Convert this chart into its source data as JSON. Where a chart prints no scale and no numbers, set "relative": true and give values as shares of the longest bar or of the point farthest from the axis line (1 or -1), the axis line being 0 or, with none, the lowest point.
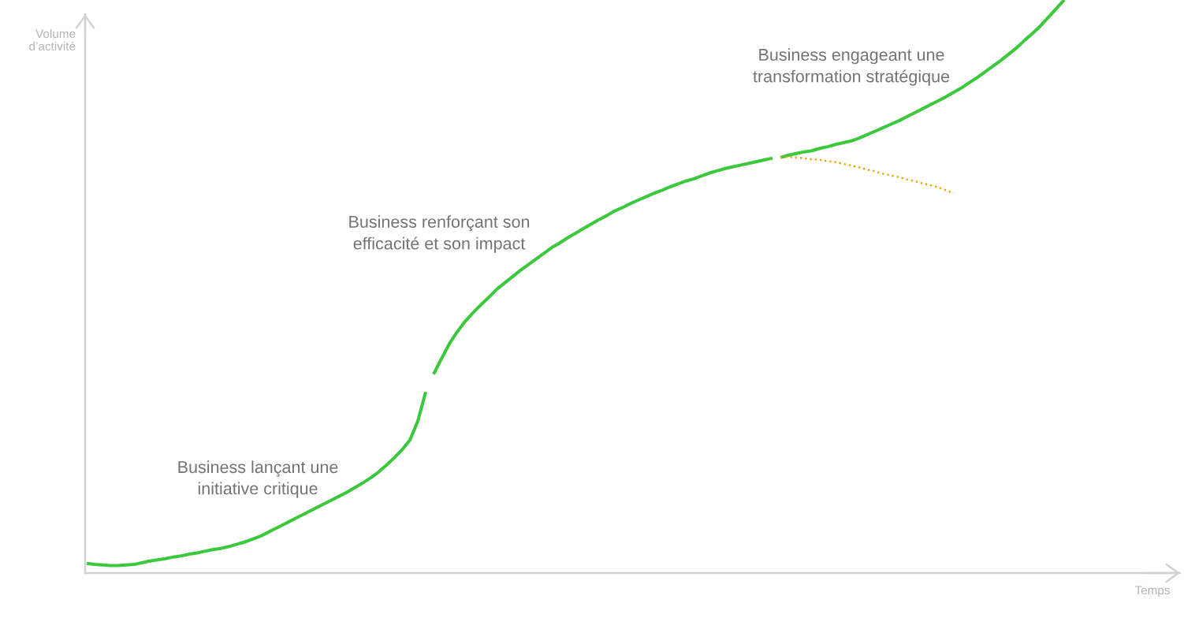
{
  "chart_data": {
    "type": "line",
    "relative": true,
    "line_style": "solid",
    "ylabel": "Volume\nd’activité",
    "xlabel": "Temps",
    "annotations": [
      "Business lançant une\ninitiative critique",
      "Business renforçant son\nefficacité et son impact",
      "Business engageant une\ntransformation stratégique"
    ],
    "categories": [
      null,
      null,
      null,
      null,
      null,
      null,
      null,
      null,
      null,
      null,
      null,
      null,
      null,
      null,
      null,
      null,
      null,
      null,
      null,
      null,
      null,
      null,
      null,
      null,
      null,
      null,
      null,
      null,
      null,
      null,
      null,
      null,
      null,
      null,
      null,
      null,
      null,
      null,
      null,
      null,
      null,
      null,
      null,
      null,
      null,
      null,
      null,
      null,
      null,
      null,
      null,
      null,
      null,
      null,
      null,
      null,
      null,
      null,
      null,
      null,
      null,
      null,
      null,
      null,
      null,
      null,
      null,
      null,
      null,
      null,
      null,
      null,
      null,
      null,
      null,
      null,
      null,
      null,
      null,
      null,
      null,
      null,
      null,
      null,
      null,
      null,
      null,
      null,
      null,
      null,
      null,
      null,
      null,
      null,
      null,
      null,
      null,
      null,
      null,
      null,
      null,
      null,
      null,
      null,
      null,
      null,
      null,
      null,
      null,
      null,
      null,
      null,
      null,
      null,
      null,
      null,
      null,
      null,
      null,
      null,
      null,
      null,
      null,
      null,
      null,
      null,
      null,
      null,
      null,
      null,
      null,
      null,
      null,
      null,
      null,
      null,
      null,
      null,
      null
    ],
    "series": [
      {
        "color": "#3cc83c",
        "values": [
          0.017,
          0.015,
          0.014,
          0.013,
          0.013,
          0.014,
          0.015,
          0.018,
          0.021,
          0.023,
          0.025,
          0.028,
          0.03,
          0.033,
          0.035,
          0.038,
          0.041,
          0.043,
          0.046,
          0.05,
          0.054,
          0.059,
          0.064,
          0.071,
          0.078,
          0.085,
          0.092,
          0.099,
          0.106,
          0.113,
          0.12,
          0.127,
          0.134,
          0.141,
          0.149,
          0.157,
          0.166,
          0.176,
          0.188,
          0.201,
          0.215,
          0.232,
          0.265,
          0.316,
          null,
          null,
          null,
          null,
          null,
          null,
          null,
          null,
          null,
          null,
          null,
          null,
          null,
          null,
          null,
          null,
          null,
          null,
          null,
          null,
          null,
          null,
          null,
          null,
          null,
          null,
          null,
          null,
          null,
          null,
          null,
          null,
          null,
          null,
          null,
          null,
          null,
          null,
          null,
          null,
          null,
          null,
          null,
          null,
          null,
          null,
          null,
          null,
          null,
          null,
          null,
          null,
          null,
          null,
          null,
          null,
          null,
          null,
          null,
          null,
          null,
          null,
          null,
          null,
          null,
          null,
          null,
          null,
          null,
          null,
          null,
          null,
          null,
          null,
          null,
          null,
          null,
          null,
          null,
          null,
          null,
          null,
          null,
          null,
          null,
          null,
          null,
          null,
          null,
          null,
          null,
          null,
          null,
          null,
          null
        ]
      },
      {
        "color": "#3cc83c",
        "values": [
          null,
          null,
          null,
          null,
          null,
          null,
          null,
          null,
          null,
          null,
          null,
          null,
          null,
          null,
          null,
          null,
          null,
          null,
          null,
          null,
          null,
          null,
          null,
          null,
          null,
          null,
          null,
          null,
          null,
          null,
          null,
          null,
          null,
          null,
          null,
          null,
          null,
          null,
          null,
          null,
          null,
          null,
          null,
          null,
          0.347,
          0.374,
          0.4,
          0.421,
          0.439,
          0.454,
          0.468,
          0.481,
          0.495,
          0.506,
          0.517,
          0.528,
          0.538,
          0.548,
          0.558,
          0.568,
          0.576,
          0.585,
          0.593,
          0.601,
          0.609,
          0.617,
          0.624,
          0.632,
          0.638,
          0.645,
          0.651,
          0.657,
          0.663,
          0.668,
          0.674,
          0.679,
          0.684,
          0.688,
          0.693,
          0.698,
          0.702,
          0.706,
          0.709,
          0.712,
          0.715,
          0.718,
          0.721,
          0.724,
          null,
          null,
          null,
          null,
          null,
          null,
          null,
          null,
          null,
          null,
          null,
          null,
          null,
          null,
          null,
          null,
          null,
          null,
          null,
          null,
          null,
          null,
          null,
          null,
          null,
          null,
          null,
          null,
          null,
          null,
          null,
          null,
          null,
          null,
          null,
          null,
          null,
          null,
          null,
          null,
          null,
          null,
          null,
          null,
          null,
          null,
          null,
          null,
          null,
          null,
          null
        ]
      },
      {
        "color": "#3cc83c",
        "values": [
          null,
          null,
          null,
          null,
          null,
          null,
          null,
          null,
          null,
          null,
          null,
          null,
          null,
          null,
          null,
          null,
          null,
          null,
          null,
          null,
          null,
          null,
          null,
          null,
          null,
          null,
          null,
          null,
          null,
          null,
          null,
          null,
          null,
          null,
          null,
          null,
          null,
          null,
          null,
          null,
          null,
          null,
          null,
          null,
          null,
          null,
          null,
          null,
          null,
          null,
          null,
          null,
          null,
          null,
          null,
          null,
          null,
          null,
          null,
          null,
          null,
          null,
          null,
          null,
          null,
          null,
          null,
          null,
          null,
          null,
          null,
          null,
          null,
          null,
          null,
          null,
          null,
          null,
          null,
          null,
          null,
          null,
          null,
          null,
          null,
          null,
          null,
          null,
          0.725,
          0.729,
          0.732,
          0.735,
          0.737,
          0.741,
          0.744,
          0.748,
          0.751,
          0.754,
          0.759,
          0.765,
          0.771,
          0.777,
          0.783,
          0.789,
          0.796,
          0.803,
          0.81,
          0.817,
          0.824,
          0.831,
          0.839,
          0.847,
          0.856,
          0.865,
          0.875,
          0.885,
          0.895,
          0.906,
          0.917,
          0.93,
          0.942,
          0.955,
          0.97,
          0.985,
          1.0,
          null,
          null,
          null,
          null,
          null,
          null,
          null,
          null,
          null,
          null,
          null,
          null,
          null,
          null
        ]
      },
      {
        "color": "#f0a30a",
        "line_style": "dotted",
        "values": [
          null,
          null,
          null,
          null,
          null,
          null,
          null,
          null,
          null,
          null,
          null,
          null,
          null,
          null,
          null,
          null,
          null,
          null,
          null,
          null,
          null,
          null,
          null,
          null,
          null,
          null,
          null,
          null,
          null,
          null,
          null,
          null,
          null,
          null,
          null,
          null,
          null,
          null,
          null,
          null,
          null,
          null,
          null,
          null,
          null,
          null,
          null,
          null,
          null,
          null,
          null,
          null,
          null,
          null,
          null,
          null,
          null,
          null,
          null,
          null,
          null,
          null,
          null,
          null,
          null,
          null,
          null,
          null,
          null,
          null,
          null,
          null,
          null,
          null,
          null,
          null,
          null,
          null,
          null,
          null,
          null,
          null,
          null,
          null,
          null,
          null,
          null,
          null,
          0.725,
          0.726,
          0.725,
          0.724,
          0.722,
          0.721,
          0.719,
          0.717,
          0.714,
          0.711,
          0.708,
          0.704,
          0.701,
          0.697,
          0.694,
          0.691,
          0.687,
          0.684,
          0.68,
          0.677,
          0.673,
          0.668,
          0.663,
          null,
          null,
          null,
          null,
          null,
          null,
          null,
          null,
          null,
          null,
          null,
          null,
          null,
          null,
          null,
          null,
          null,
          null,
          null,
          null,
          null,
          null,
          null,
          null,
          null,
          null,
          null,
          null
        ]
      }
    ]
  }
}
